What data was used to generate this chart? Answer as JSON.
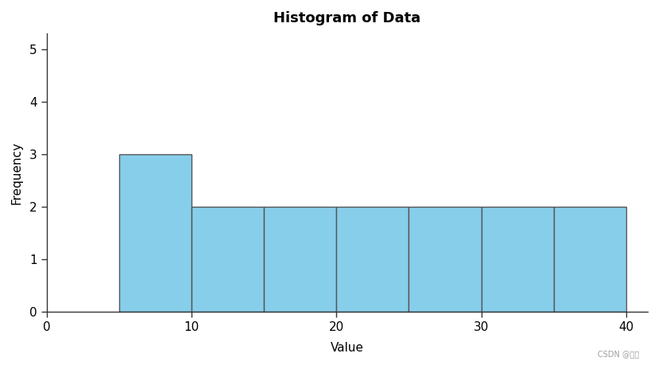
{
  "title": "Histogram of Data",
  "xlabel": "Value",
  "ylabel": "Frequency",
  "bar_edges": [
    5,
    10,
    15,
    20,
    25,
    30,
    35,
    40
  ],
  "bar_heights": [
    3,
    2,
    2,
    2,
    2,
    2,
    2
  ],
  "bar_color": "#87CEEB",
  "bar_edgecolor": "#555555",
  "xlim": [
    0,
    41.5
  ],
  "ylim": [
    0,
    5.3
  ],
  "xticks": [
    0,
    10,
    20,
    30,
    40
  ],
  "yticks": [
    0,
    1,
    2,
    3,
    4,
    5
  ],
  "title_fontsize": 13,
  "axis_label_fontsize": 11,
  "tick_fontsize": 11,
  "background_color": "#ffffff",
  "watermark": "CSDN @泥木",
  "bar_linewidth": 1.0,
  "figsize": [
    8.29,
    4.59
  ],
  "dpi": 100
}
